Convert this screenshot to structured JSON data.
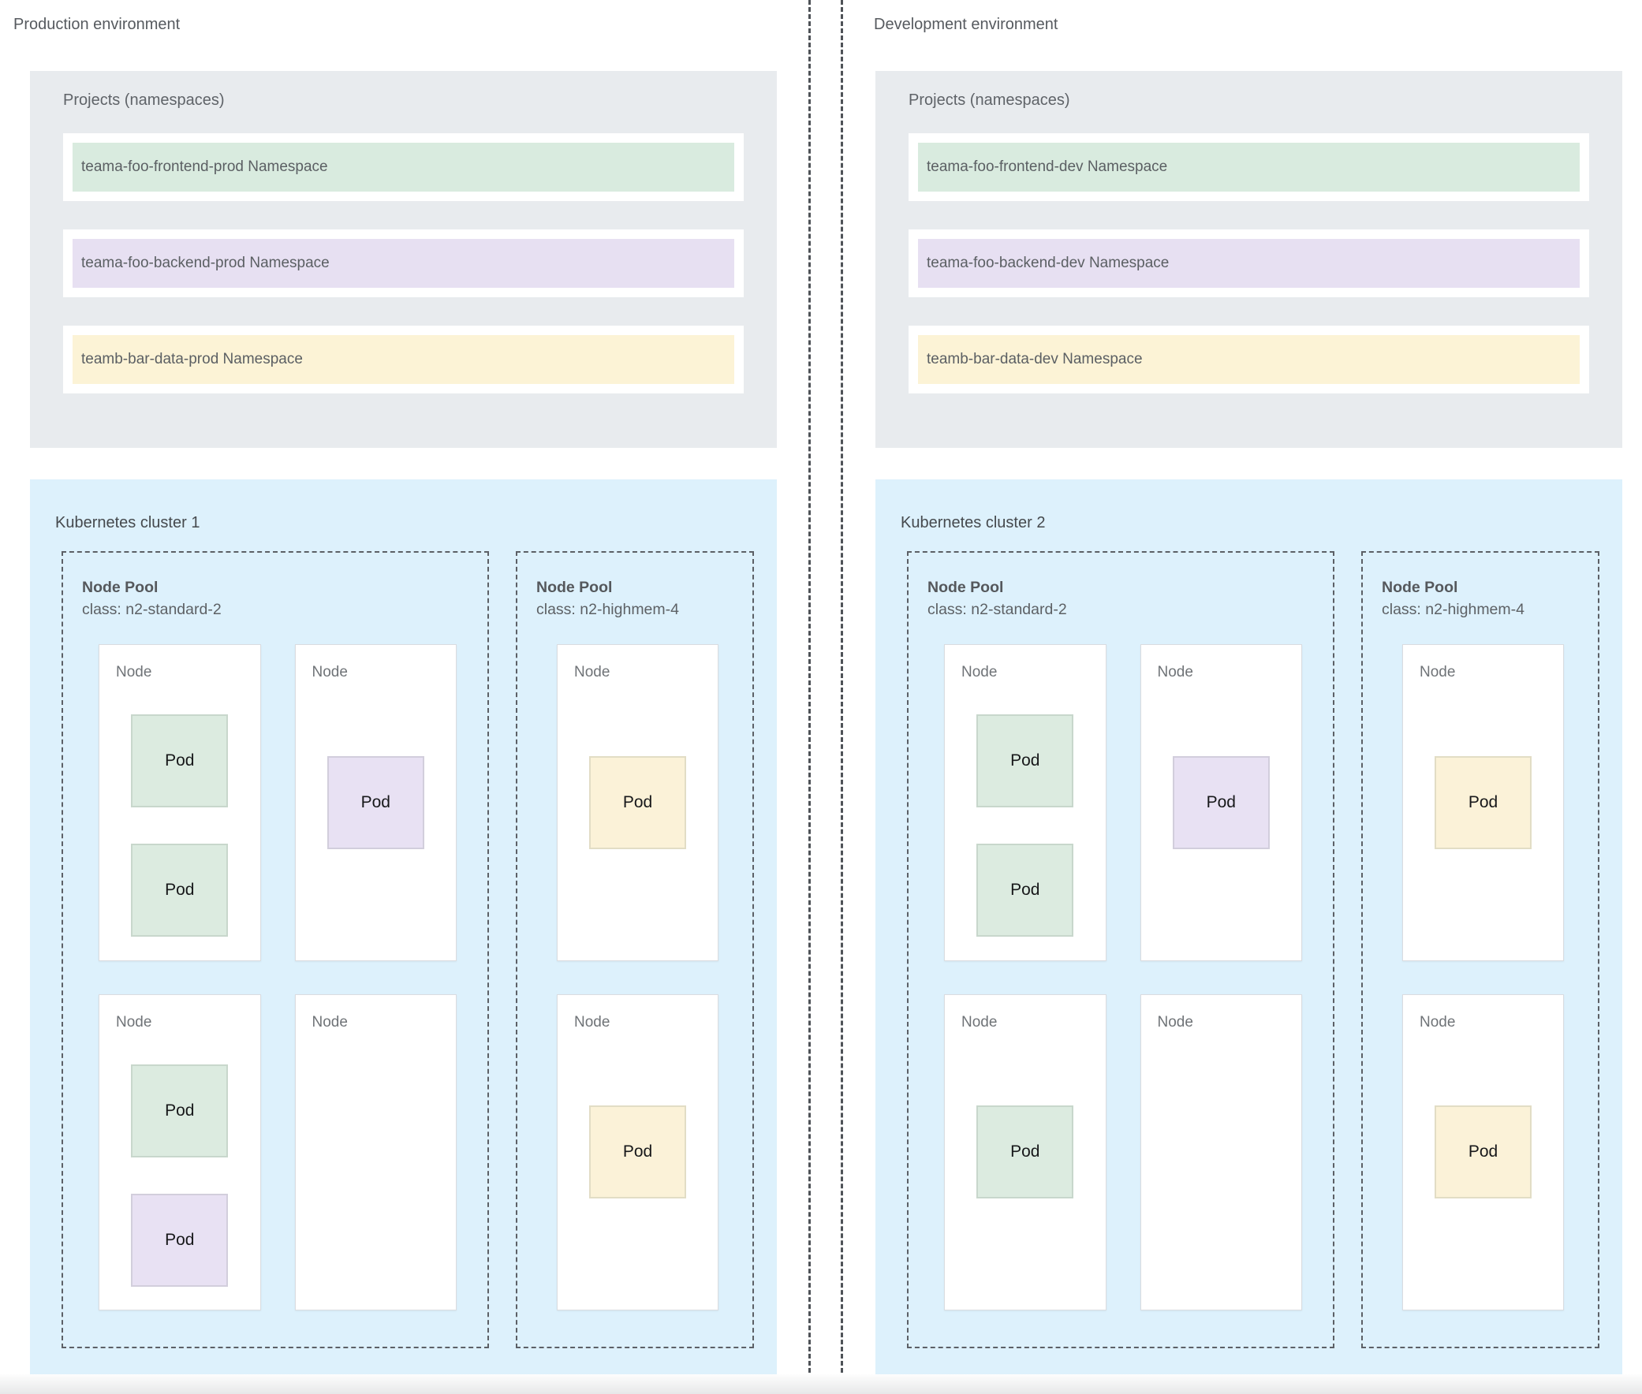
{
  "colors": {
    "projects_bg": "#e8ebee",
    "cluster_bg": "#ddf1fc",
    "frontend": "#dcebe0",
    "backend": "#e8e1f3",
    "data": "#fbf2d8",
    "ns_frontend": "#d9ebdf",
    "ns_backend": "#e7e0f2",
    "ns_data": "#fcf3d6"
  },
  "environments": [
    {
      "label": "Production environment",
      "projects": {
        "title": "Projects (namespaces)",
        "namespaces": [
          {
            "label": "teama-foo-frontend-prod Namespace",
            "color_key": "ns_frontend"
          },
          {
            "label": "teama-foo-backend-prod Namespace",
            "color_key": "ns_backend"
          },
          {
            "label": "teamb-bar-data-prod Namespace",
            "color_key": "ns_data"
          }
        ]
      },
      "cluster": {
        "title": "Kubernetes cluster 1",
        "node_pools": [
          {
            "name": "Node Pool",
            "class_label": "class: n2-standard-2",
            "nodes": [
              {
                "label": "Node",
                "pods": [
                  {
                    "label": "Pod",
                    "color_key": "frontend"
                  },
                  {
                    "label": "Pod",
                    "color_key": "frontend"
                  }
                ]
              },
              {
                "label": "Node",
                "pods": [
                  {
                    "label": "Pod",
                    "color_key": "backend"
                  }
                ]
              },
              {
                "label": "Node",
                "pods": [
                  {
                    "label": "Pod",
                    "color_key": "frontend"
                  },
                  {
                    "label": "Pod",
                    "color_key": "backend"
                  }
                ]
              },
              {
                "label": "Node",
                "pods": []
              }
            ]
          },
          {
            "name": "Node Pool",
            "class_label": "class: n2-highmem-4",
            "nodes": [
              {
                "label": "Node",
                "pods": [
                  {
                    "label": "Pod",
                    "color_key": "data"
                  }
                ]
              },
              {
                "label": "Node",
                "pods": [
                  {
                    "label": "Pod",
                    "color_key": "data"
                  }
                ]
              }
            ]
          }
        ]
      }
    },
    {
      "label": "Development environment",
      "projects": {
        "title": "Projects (namespaces)",
        "namespaces": [
          {
            "label": "teama-foo-frontend-dev Namespace",
            "color_key": "ns_frontend"
          },
          {
            "label": "teama-foo-backend-dev Namespace",
            "color_key": "ns_backend"
          },
          {
            "label": "teamb-bar-data-dev Namespace",
            "color_key": "ns_data"
          }
        ]
      },
      "cluster": {
        "title": "Kubernetes cluster 2",
        "node_pools": [
          {
            "name": "Node Pool",
            "class_label": "class: n2-standard-2",
            "nodes": [
              {
                "label": "Node",
                "pods": [
                  {
                    "label": "Pod",
                    "color_key": "frontend"
                  },
                  {
                    "label": "Pod",
                    "color_key": "frontend"
                  }
                ]
              },
              {
                "label": "Node",
                "pods": [
                  {
                    "label": "Pod",
                    "color_key": "backend"
                  }
                ]
              },
              {
                "label": "Node",
                "pods": [
                  {
                    "label": "Pod",
                    "color_key": "frontend"
                  }
                ]
              },
              {
                "label": "Node",
                "pods": []
              }
            ]
          },
          {
            "name": "Node Pool",
            "class_label": "class: n2-highmem-4",
            "nodes": [
              {
                "label": "Node",
                "pods": [
                  {
                    "label": "Pod",
                    "color_key": "data"
                  }
                ]
              },
              {
                "label": "Node",
                "pods": [
                  {
                    "label": "Pod",
                    "color_key": "data"
                  }
                ]
              }
            ]
          }
        ]
      }
    }
  ]
}
